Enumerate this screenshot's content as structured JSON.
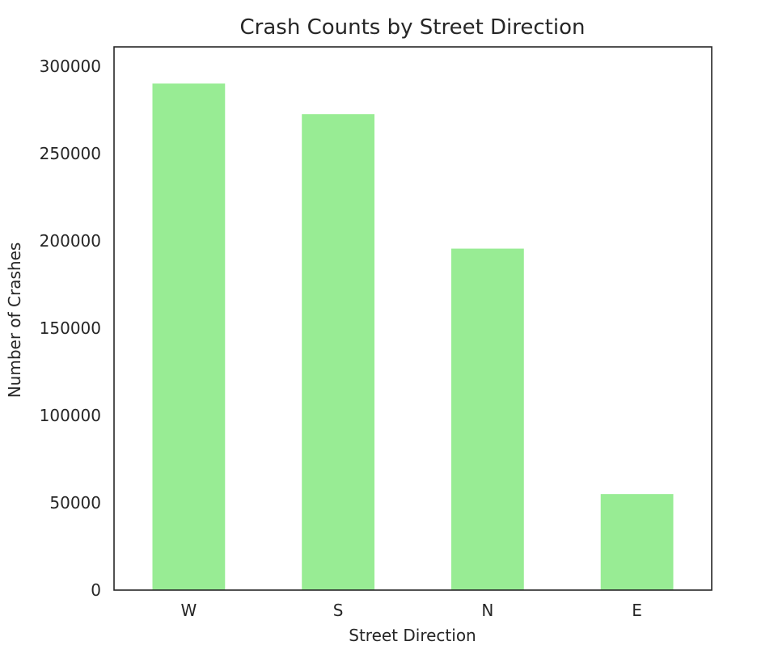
{
  "chart_data": {
    "type": "bar",
    "title": "Crash Counts by Street Direction",
    "xlabel": "Street Direction",
    "ylabel": "Number of Crashes",
    "categories": [
      "W",
      "S",
      "N",
      "E"
    ],
    "values": [
      290000,
      272500,
      195500,
      55000
    ],
    "ylim": [
      0,
      311000
    ],
    "yticks": [
      0,
      50000,
      100000,
      150000,
      200000,
      250000,
      300000
    ],
    "ytick_labels": [
      "0",
      "50000",
      "100000",
      "150000",
      "200000",
      "250000",
      "300000"
    ],
    "grid": false,
    "legend": "none",
    "bar_color": "#98ec94",
    "axis_color": "#262626"
  }
}
